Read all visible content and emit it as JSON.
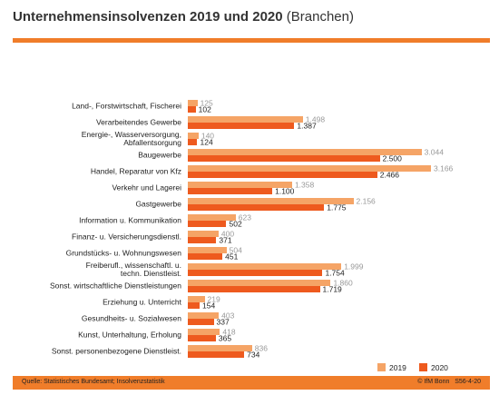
{
  "chart_data": {
    "type": "bar",
    "orientation": "horizontal",
    "title": "Unternehmensinsolvenzen 2019 und 2020",
    "subtitle": "(Branchen)",
    "categories": [
      "Land-, Forstwirtschaft, Fischerei",
      "Verarbeitendes Gewerbe",
      "Energie-, Wasserversorgung,\nAbfallentsorgung",
      "Baugewerbe",
      "Handel, Reparatur von Kfz",
      "Verkehr und Lagerei",
      "Gastgewerbe",
      "Information u. Kommunikation",
      "Finanz- u. Versicherungsdienstl.",
      "Grundstücks- u. Wohnungswesen",
      "Freiberufl., wissenschaftl. u.\ntechn. Dienstleist.",
      "Sonst. wirtschaftliche Dienstleistungen",
      "Erziehung u. Unterricht",
      "Gesundheits- u. Sozialwesen",
      "Kunst, Unterhaltung, Erholung",
      "Sonst. personenbezogene Dienstleist."
    ],
    "series": [
      {
        "name": "2019",
        "color": "#f5a466",
        "values": [
          125,
          1498,
          140,
          3044,
          3166,
          1358,
          2156,
          623,
          400,
          504,
          1999,
          1860,
          219,
          403,
          418,
          836
        ],
        "value_labels": [
          "125",
          "1.498",
          "140",
          "3.044",
          "3.166",
          "1.358",
          "2.156",
          "623",
          "400",
          "504",
          "1.999",
          "1.860",
          "219",
          "403",
          "418",
          "836"
        ]
      },
      {
        "name": "2020",
        "color": "#ee5a1e",
        "values": [
          102,
          1387,
          124,
          2500,
          2466,
          1100,
          1775,
          502,
          371,
          451,
          1754,
          1719,
          154,
          337,
          365,
          734
        ],
        "value_labels": [
          "102",
          "1.387",
          "124",
          "2.500",
          "2.466",
          "1.100",
          "1.775",
          "502",
          "371",
          "451",
          "1.754",
          "1.719",
          "154",
          "337",
          "365",
          "734"
        ]
      }
    ],
    "legend": "bottom-right",
    "source": "Quelle: Statistisches Bundesamt; Insolvenzstatistik",
    "credit": "© IfM Bonn   S56-4-20"
  }
}
